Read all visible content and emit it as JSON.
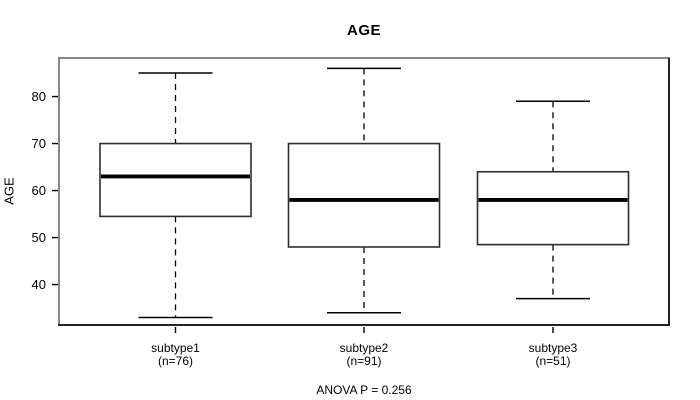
{
  "chart_data": {
    "type": "boxplot",
    "title": "AGE",
    "ylabel": "AGE",
    "footer": "ANOVA P = 0.256",
    "ylim": [
      31.4,
      88.2
    ],
    "yticks": [
      40,
      50,
      60,
      70,
      80
    ],
    "grid": false,
    "categories": [
      {
        "label": "subtype1",
        "n_label": "(n=76)",
        "n": 76,
        "whisker_low": 33,
        "q1": 54.5,
        "median": 63,
        "q3": 70,
        "whisker_high": 85
      },
      {
        "label": "subtype2",
        "n_label": "(n=91)",
        "n": 91,
        "whisker_low": 34,
        "q1": 48,
        "median": 58,
        "q3": 70,
        "whisker_high": 86
      },
      {
        "label": "subtype3",
        "n_label": "(n=51)",
        "n": 51,
        "whisker_low": 37,
        "q1": 48.5,
        "median": 58,
        "q3": 64,
        "whisker_high": 79
      }
    ],
    "colors": {
      "background": "#ffffff",
      "text": "#000000",
      "box_border": "#2e2e2e",
      "box_fill": "#ffffff",
      "median": "#000000",
      "whisker": "#000000",
      "tick": "#000000",
      "frame_light": "#868686",
      "frame_dark": "#242424"
    }
  }
}
